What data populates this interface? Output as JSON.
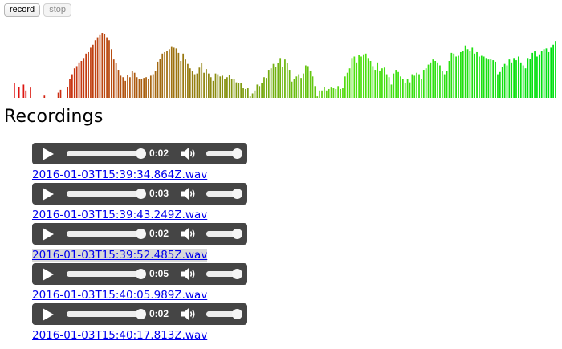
{
  "toolbar": {
    "record_label": "record",
    "stop_label": "stop",
    "stop_disabled": true
  },
  "visualizer": {
    "color_start": "#e01010",
    "color_end": "#10e010",
    "levels": [
      0.2,
      0,
      0.15,
      0,
      0.18,
      0.1,
      0,
      0.14,
      0,
      0,
      0,
      0,
      0,
      0.03,
      0,
      0,
      0,
      0,
      0,
      0.07,
      0.11,
      0,
      0,
      0.15,
      0.25,
      0.32,
      0.4,
      0.43,
      0.48,
      0.5,
      0.54,
      0.6,
      0.62,
      0.68,
      0.72,
      0.78,
      0.82,
      0.85,
      0.88,
      0.86,
      0.82,
      0.78,
      0.66,
      0.52,
      0.47,
      0.38,
      0.3,
      0.28,
      0.23,
      0.31,
      0.28,
      0.36,
      0.34,
      0.28,
      0.26,
      0.25,
      0.27,
      0.28,
      0.26,
      0.3,
      0.32,
      0.36,
      0.49,
      0.53,
      0.6,
      0.62,
      0.64,
      0.66,
      0.7,
      0.68,
      0.67,
      0.61,
      0.5,
      0.6,
      0.52,
      0.46,
      0.4,
      0.36,
      0.32,
      0.33,
      0.41,
      0.47,
      0.34,
      0.39,
      0.33,
      0.28,
      0.23,
      0.33,
      0.32,
      0.29,
      0.3,
      0.26,
      0.28,
      0.31,
      0.25,
      0.26,
      0.21,
      0.2,
      0.2,
      0.13,
      0.12,
      0.13,
      0.02,
      0.06,
      0.1,
      0.18,
      0.16,
      0.2,
      0.28,
      0.27,
      0.38,
      0.4,
      0.46,
      0.42,
      0.47,
      0.54,
      0.42,
      0.52,
      0.47,
      0.38,
      0.22,
      0.25,
      0.29,
      0.32,
      0.27,
      0.33,
      0.44,
      0.43,
      0.37,
      0.29,
      0.16,
      0.02,
      0.1,
      0.1,
      0.15,
      0.1,
      0.12,
      0.14,
      0.13,
      0.12,
      0.16,
      0.12,
      0.13,
      0.29,
      0.34,
      0.4,
      0.54,
      0.56,
      0.48,
      0.58,
      0.56,
      0.59,
      0.6,
      0.54,
      0.5,
      0.43,
      0.38,
      0.48,
      0.37,
      0.4,
      0.41,
      0.32,
      0.28,
      0.18,
      0.33,
      0.38,
      0.35,
      0.29,
      0.25,
      0.2,
      0.26,
      0.21,
      0.32,
      0.3,
      0.34,
      0.32,
      0.26,
      0.38,
      0.4,
      0.45,
      0.48,
      0.52,
      0.5,
      0.48,
      0.44,
      0.36,
      0.32,
      0.36,
      0.5,
      0.61,
      0.6,
      0.56,
      0.57,
      0.62,
      0.64,
      0.71,
      0.66,
      0.64,
      0.68,
      0.6,
      0.62,
      0.56,
      0.57,
      0.56,
      0.54,
      0.52,
      0.53,
      0.51,
      0.49,
      0.32,
      0.35,
      0.42,
      0.46,
      0.44,
      0.52,
      0.48,
      0.54,
      0.51,
      0.56,
      0.48,
      0.44,
      0.4,
      0.54,
      0.53,
      0.61,
      0.63,
      0.56,
      0.59,
      0.63,
      0.66,
      0.67,
      0.62,
      0.68,
      0.72,
      0.77
    ]
  },
  "heading": "Recordings",
  "recordings": [
    {
      "time": "0:02",
      "name": "2016-01-03T15:39:34.864Z.wav",
      "progress": 1.0,
      "volume": 1.0,
      "highlight": false
    },
    {
      "time": "0:03",
      "name": "2016-01-03T15:39:43.249Z.wav",
      "progress": 1.0,
      "volume": 1.0,
      "highlight": false
    },
    {
      "time": "0:02",
      "name": "2016-01-03T15:39:52.485Z.wav",
      "progress": 1.0,
      "volume": 1.0,
      "highlight": true
    },
    {
      "time": "0:05",
      "name": "2016-01-03T15:40:05.989Z.wav",
      "progress": 1.0,
      "volume": 1.0,
      "highlight": false
    },
    {
      "time": "0:02",
      "name": "2016-01-03T15:40:17.813Z.wav",
      "progress": 1.0,
      "volume": 1.0,
      "highlight": false
    }
  ],
  "icons": {
    "play": "play-icon",
    "volume": "volume-icon"
  },
  "colors": {
    "player_bg": "#454545",
    "link": "#0000ee",
    "link_highlight": "#d9d9d9"
  }
}
